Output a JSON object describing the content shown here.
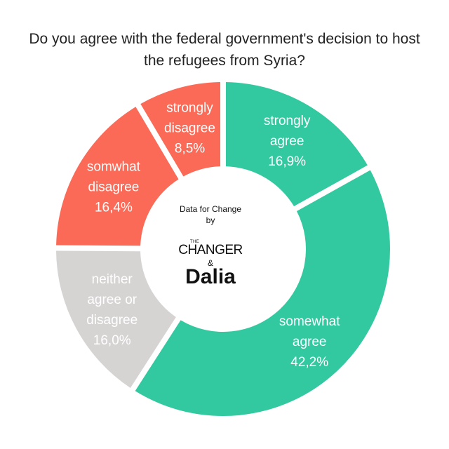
{
  "title": {
    "line1": "Do you agree with the federal government's decision to host",
    "line2": "the refugees from Syria?"
  },
  "center": {
    "line1": "Data for Change",
    "line2": "by",
    "logo_small": "THE",
    "logo_main": "CHANGER",
    "logo_amp": "&",
    "logo_dalia": "Dalia"
  },
  "chart_data": {
    "type": "pie",
    "title": "Do you agree with the federal government's decision to host the refugees from Syria?",
    "donut": true,
    "slices": [
      {
        "label": "strongly agree",
        "value": 16.9,
        "value_label": "16,9%",
        "color": "#33c9a0"
      },
      {
        "label": "somewhat agree",
        "value": 42.2,
        "value_label": "42,2%",
        "color": "#33c9a0"
      },
      {
        "label": "neither agree or disagree",
        "value": 16.0,
        "value_label": "16,0%",
        "color": "#d6d3d3"
      },
      {
        "label": "somwhat disagree",
        "value": 16.4,
        "value_label": "16,4%",
        "color": "#fa6a57"
      },
      {
        "label": "strongly disagree",
        "value": 8.5,
        "value_label": "8,5%",
        "color": "#fa6a57"
      }
    ]
  }
}
